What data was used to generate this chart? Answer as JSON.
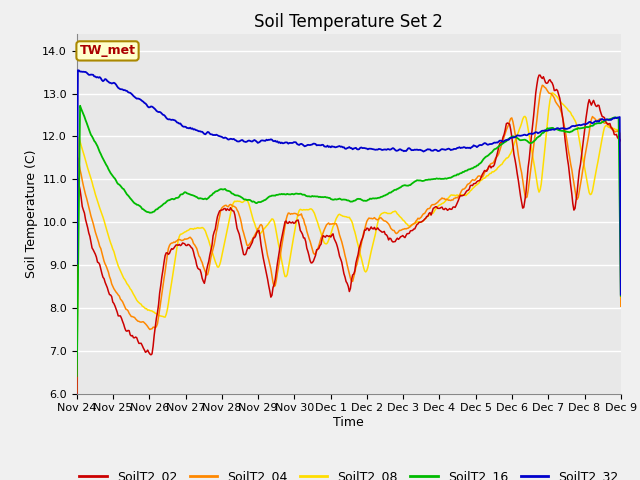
{
  "title": "Soil Temperature Set 2",
  "xlabel": "Time",
  "ylabel": "Soil Temperature (C)",
  "ylim": [
    6.0,
    14.4
  ],
  "yticks": [
    6.0,
    7.0,
    8.0,
    9.0,
    10.0,
    11.0,
    12.0,
    13.0,
    14.0
  ],
  "series_colors": {
    "SoilT2_02": "#cc0000",
    "SoilT2_04": "#ff8800",
    "SoilT2_08": "#ffdd00",
    "SoilT2_16": "#00bb00",
    "SoilT2_32": "#0000cc"
  },
  "label_box": "TW_met",
  "label_box_color": "#ffffcc",
  "label_box_border": "#aa8800",
  "label_box_text": "#aa0000",
  "background_color": "#e8e8e8",
  "grid_color": "#ffffff",
  "xtick_labels": [
    "Nov 24",
    "Nov 25",
    "Nov 26",
    "Nov 27",
    "Nov 28",
    "Nov 29",
    "Nov 30",
    "Dec 1",
    "Dec 2",
    "Dec 3",
    "Dec 4",
    "Dec 5",
    "Dec 6",
    "Dec 7",
    "Dec 8",
    "Dec 9"
  ],
  "n_points": 500,
  "title_fontsize": 12,
  "axis_label_fontsize": 9,
  "tick_fontsize": 8,
  "legend_fontsize": 9,
  "key_t02": [
    0,
    0.15,
    0.4,
    0.9,
    1.35,
    1.7,
    2.05,
    2.4,
    2.8,
    3.1,
    3.5,
    3.9,
    4.3,
    4.6,
    5.0,
    5.35,
    5.7,
    6.1,
    6.45,
    6.8,
    7.1,
    7.5,
    7.9,
    8.3,
    8.7,
    9.1,
    9.5,
    9.9,
    10.3,
    10.7,
    11.1,
    11.5,
    11.9,
    12.3,
    12.7,
    13.0,
    13.3,
    13.7,
    14.1,
    14.5,
    14.85,
    15.0
  ],
  "val_t02": [
    11.1,
    10.3,
    9.5,
    8.3,
    7.5,
    7.2,
    6.85,
    9.2,
    9.5,
    9.5,
    8.55,
    10.3,
    10.3,
    9.2,
    9.8,
    8.15,
    10.0,
    10.0,
    9.0,
    9.7,
    9.65,
    8.35,
    9.85,
    9.85,
    9.55,
    9.7,
    10.0,
    10.35,
    10.3,
    10.7,
    11.0,
    11.4,
    12.4,
    10.2,
    13.4,
    13.3,
    13.0,
    10.2,
    12.9,
    12.5,
    12.0,
    11.95
  ],
  "key_t04": [
    0,
    0.2,
    0.5,
    1.0,
    1.5,
    1.9,
    2.2,
    2.55,
    2.9,
    3.2,
    3.6,
    4.0,
    4.4,
    4.7,
    5.1,
    5.45,
    5.8,
    6.2,
    6.55,
    6.9,
    7.2,
    7.6,
    8.0,
    8.4,
    8.8,
    9.2,
    9.6,
    10.0,
    10.4,
    10.8,
    11.2,
    11.6,
    12.0,
    12.4,
    12.8,
    13.1,
    13.4,
    13.8,
    14.2,
    14.6,
    14.9,
    15.0
  ],
  "val_t04": [
    11.6,
    10.8,
    9.8,
    8.5,
    7.8,
    7.6,
    7.5,
    9.5,
    9.6,
    9.6,
    8.7,
    10.4,
    10.4,
    9.4,
    10.0,
    8.4,
    10.2,
    10.2,
    9.2,
    10.0,
    9.9,
    8.55,
    10.05,
    10.1,
    9.75,
    9.9,
    10.2,
    10.55,
    10.5,
    10.9,
    11.1,
    11.5,
    12.5,
    10.4,
    13.2,
    13.0,
    12.5,
    10.4,
    12.5,
    12.3,
    12.1,
    12.05
  ],
  "key_t08": [
    0,
    0.3,
    0.7,
    1.2,
    1.7,
    2.1,
    2.45,
    2.8,
    3.15,
    3.5,
    3.9,
    4.3,
    4.7,
    5.0,
    5.4,
    5.75,
    6.1,
    6.5,
    6.85,
    7.2,
    7.55,
    7.95,
    8.35,
    8.75,
    9.15,
    9.55,
    9.95,
    10.35,
    10.75,
    11.15,
    11.55,
    11.95,
    12.35,
    12.75,
    13.05,
    13.35,
    13.75,
    14.15,
    14.55,
    14.9,
    15.0
  ],
  "val_t08": [
    12.1,
    11.2,
    10.1,
    8.8,
    8.1,
    7.9,
    7.75,
    9.7,
    9.85,
    9.85,
    8.85,
    10.5,
    10.5,
    9.65,
    10.15,
    8.6,
    10.3,
    10.3,
    9.4,
    10.2,
    10.1,
    8.75,
    10.2,
    10.25,
    9.9,
    10.05,
    10.35,
    10.65,
    10.65,
    11.0,
    11.2,
    11.6,
    12.55,
    10.55,
    13.05,
    12.8,
    12.35,
    10.5,
    12.3,
    12.1,
    12.0
  ],
  "key_t16": [
    0,
    0.3,
    0.8,
    1.5,
    2.0,
    2.5,
    3.0,
    3.5,
    4.0,
    4.5,
    5.0,
    5.5,
    6.0,
    6.5,
    7.0,
    7.5,
    8.0,
    8.5,
    9.0,
    9.5,
    10.0,
    10.5,
    11.0,
    11.5,
    12.0,
    12.5,
    13.0,
    13.5,
    14.0,
    14.5,
    15.0
  ],
  "val_t16": [
    12.9,
    12.2,
    11.3,
    10.5,
    10.2,
    10.5,
    10.7,
    10.5,
    10.8,
    10.55,
    10.45,
    10.65,
    10.65,
    10.6,
    10.55,
    10.5,
    10.5,
    10.65,
    10.85,
    11.0,
    11.0,
    11.1,
    11.3,
    11.7,
    12.0,
    11.85,
    12.2,
    12.1,
    12.2,
    12.35,
    12.45
  ],
  "key_t32": [
    0,
    0.5,
    1.0,
    1.5,
    2.0,
    2.5,
    3.0,
    3.5,
    4.0,
    4.5,
    5.0,
    5.3,
    5.7,
    6.0,
    6.3,
    6.5,
    6.8,
    7.0,
    7.5,
    8.0,
    8.5,
    9.0,
    9.5,
    10.0,
    10.5,
    11.0,
    11.5,
    12.0,
    12.5,
    13.0,
    13.5,
    14.0,
    14.5,
    15.0
  ],
  "val_t32": [
    13.57,
    13.42,
    13.22,
    13.0,
    12.7,
    12.45,
    12.22,
    12.1,
    11.98,
    11.9,
    11.88,
    11.92,
    11.85,
    11.85,
    11.78,
    11.82,
    11.78,
    11.77,
    11.73,
    11.72,
    11.7,
    11.67,
    11.67,
    11.68,
    11.72,
    11.78,
    11.85,
    11.98,
    12.05,
    12.15,
    12.2,
    12.28,
    12.38,
    12.45
  ]
}
